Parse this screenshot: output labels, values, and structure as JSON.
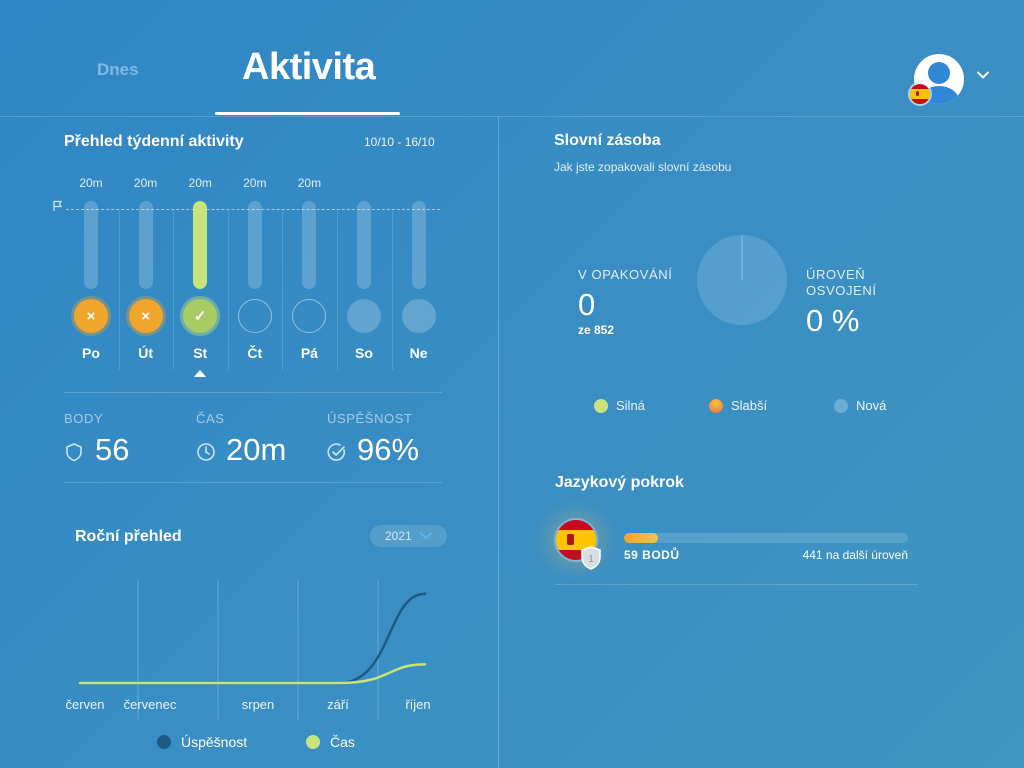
{
  "header": {
    "tabs": [
      {
        "label": "Dnes",
        "active": false
      },
      {
        "label": "Aktivita",
        "active": true
      }
    ],
    "avatar_icon": "user-icon",
    "language_flag": "spain-flag"
  },
  "weekly": {
    "title": "Přehled týdenní aktivity",
    "date_range": "10/10 - 16/10",
    "days": [
      {
        "label": "Po",
        "minutes": "20m",
        "status": "missed",
        "progress": 0
      },
      {
        "label": "Út",
        "minutes": "20m",
        "status": "missed",
        "progress": 0
      },
      {
        "label": "St",
        "minutes": "20m",
        "status": "done",
        "progress": 1.0,
        "today": true
      },
      {
        "label": "Čt",
        "minutes": "20m",
        "status": "empty",
        "progress": 0
      },
      {
        "label": "Pá",
        "minutes": "20m",
        "status": "empty",
        "progress": 0
      },
      {
        "label": "So",
        "minutes": "",
        "status": "future",
        "progress": 0
      },
      {
        "label": "Ne",
        "minutes": "",
        "status": "future",
        "progress": 0
      }
    ],
    "missed_glyph": "×",
    "done_glyph": "✓"
  },
  "stats": {
    "points": {
      "label": "BODY",
      "value": "56",
      "icon": "shield-icon"
    },
    "time": {
      "label": "ČAS",
      "value": "20m",
      "icon": "clock-icon"
    },
    "success": {
      "label": "ÚSPĚŠNOST",
      "value": "96%",
      "icon": "check-circle-icon"
    }
  },
  "yearly": {
    "title": "Roční přehled",
    "year_select": "2021",
    "legend": [
      {
        "name": "Úspěšnost",
        "color": "#1d5a86"
      },
      {
        "name": "Čas",
        "color": "#c8e37a"
      }
    ]
  },
  "chart_data": {
    "type": "line",
    "categories": [
      "červen",
      "červenec",
      "srpen",
      "září",
      "říjen"
    ],
    "series": [
      {
        "name": "Úspěšnost",
        "color": "#1d5a86",
        "values": [
          0,
          0,
          0,
          0,
          96
        ]
      },
      {
        "name": "Čas",
        "color": "#c8e37a",
        "values": [
          0,
          0,
          0,
          0,
          20
        ]
      }
    ],
    "grid": true,
    "legend_position": "bottom"
  },
  "vocabulary": {
    "title": "Slovní zásoba",
    "subtitle": "Jak jste zopakovali slovní zásobu",
    "in_review_label": "V OPAKOVÁNÍ",
    "in_review_value": "0",
    "in_review_total": "ze 852",
    "mastery_label_1": "ÚROVEŇ",
    "mastery_label_2": "OSVOJENÍ",
    "mastery_value": "0 %",
    "legend": [
      {
        "name": "Silná",
        "color": "#c8e37a"
      },
      {
        "name": "Slabší",
        "color": "#f06a3c"
      },
      {
        "name": "Nová",
        "color": "#6aaed6"
      }
    ]
  },
  "language_progress": {
    "title": "Jazykový pokrok",
    "level": "1",
    "points_text": "59 BODŮ",
    "next_level_text": "441 na další úroveň",
    "progress": 0.118
  },
  "colors": {
    "accent_green": "#c8e37a",
    "accent_orange": "#f0a52c",
    "background": "#3a8ec4"
  }
}
